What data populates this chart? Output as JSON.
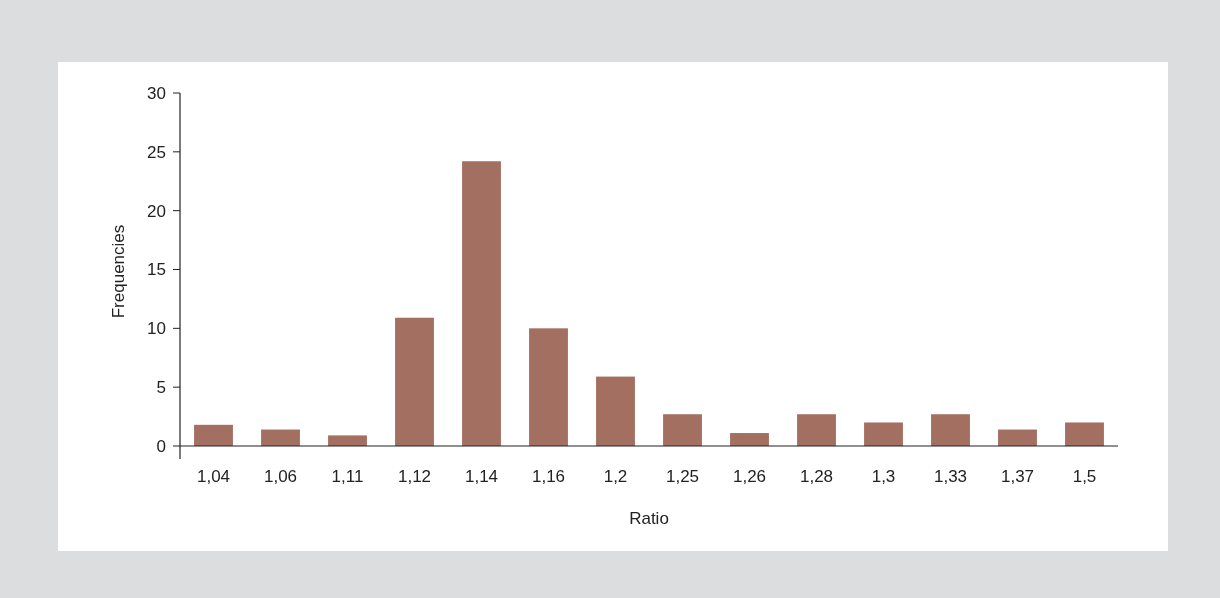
{
  "chart_data": {
    "type": "bar",
    "xlabel": "Ratio",
    "ylabel": "Frequencies",
    "categories": [
      "1,04",
      "1,06",
      "1,11",
      "1,12",
      "1,14",
      "1,16",
      "1,2",
      "1,25",
      "1,26",
      "1,28",
      "1,3",
      "1,33",
      "1,37",
      "1,5"
    ],
    "values": [
      1.8,
      1.4,
      0.9,
      10.9,
      24.2,
      10,
      5.9,
      2.7,
      1.1,
      2.7,
      2,
      2.7,
      1.4,
      2
    ],
    "color": "#a26f61",
    "ylim": [
      0,
      30
    ],
    "yticks": [
      0,
      5,
      10,
      15,
      20,
      25,
      30
    ],
    "grid": false
  }
}
